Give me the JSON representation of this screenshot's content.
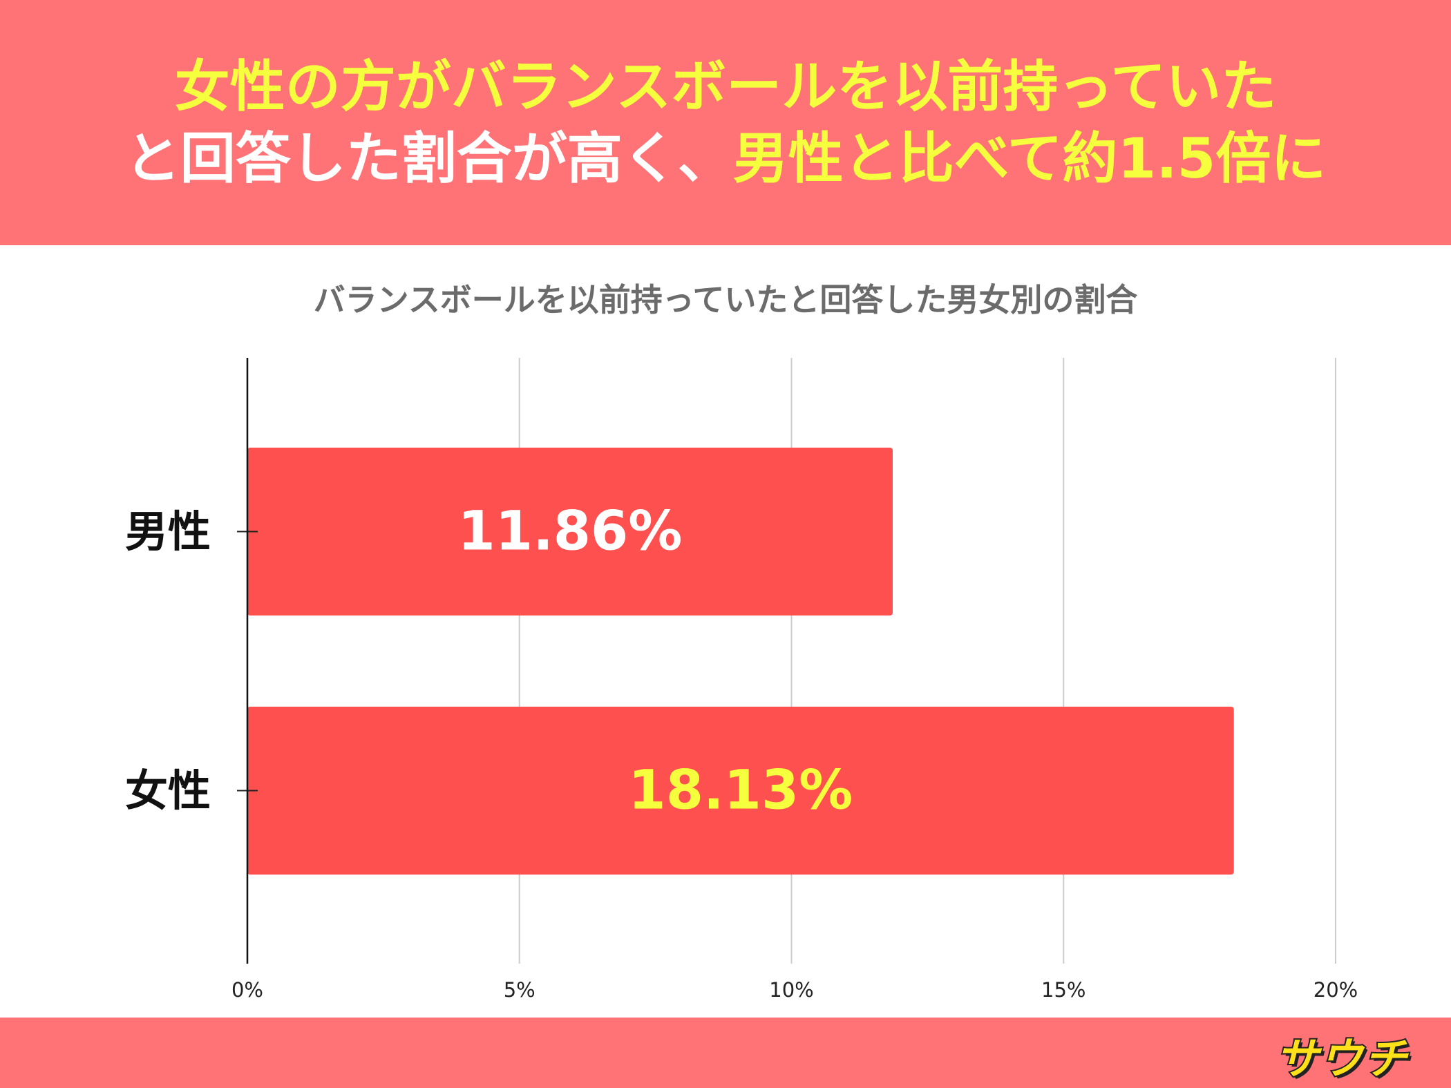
{
  "headline": {
    "line1": "女性の方がバランスボールを以前持っていた",
    "line2_white": "と回答した割合が高く、",
    "line2_yellow": "男性と比べて約1.5倍に"
  },
  "colors": {
    "banner": "#ff7276",
    "bar": "#ff5050",
    "highlight_yellow": "#f6ff3d",
    "white": "#ffffff",
    "grid": "#cccccc"
  },
  "logo_text": "サウチ",
  "chart_data": {
    "type": "bar",
    "orientation": "horizontal",
    "title": "バランスボールを以前持っていたと回答した男女別の割合",
    "categories": [
      "男性",
      "女性"
    ],
    "values": [
      11.86,
      18.13
    ],
    "value_labels": [
      "11.86%",
      "18.13%"
    ],
    "value_label_colors": [
      "#ffffff",
      "#f6ff3d"
    ],
    "xlim": [
      0,
      20
    ],
    "xticks": [
      0,
      5,
      10,
      15,
      20
    ],
    "xtick_labels": [
      "0%",
      "5%",
      "10%",
      "15%",
      "20%"
    ],
    "grid": true,
    "legend": "none"
  }
}
